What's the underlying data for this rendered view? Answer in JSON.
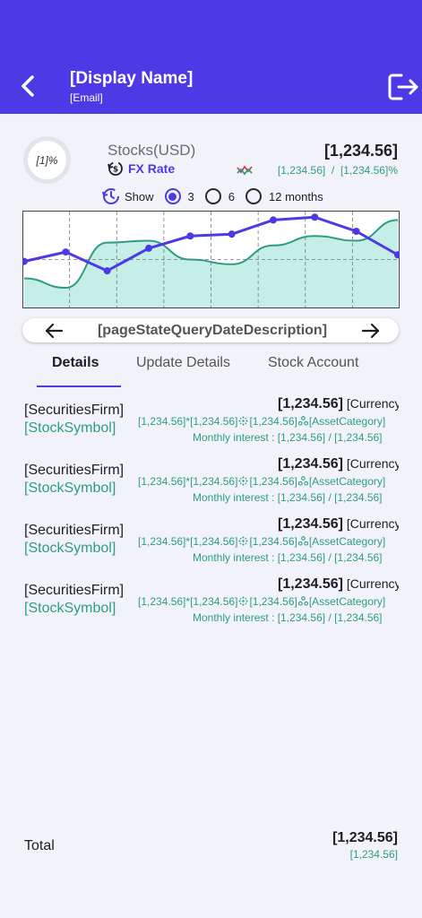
{
  "header": {
    "display_name": "[Display Name]",
    "email": "[Email]",
    "back_icon": "chevron-left-icon",
    "logout_icon": "logout-icon",
    "background_color": "#4b3ae6"
  },
  "summary": {
    "ratio_label": "[1]%",
    "title": "Stocks(USD)",
    "fx_label": "FX Rate",
    "total_value": "[1,234.56]",
    "rate_a": "[1,234.56]",
    "rate_separator": "/",
    "rate_b": "[1,234.56]%"
  },
  "period": {
    "show_label": "Show",
    "options": [
      "3",
      "6",
      "12 months"
    ],
    "selected": "3"
  },
  "chart_data": {
    "type": "line",
    "title": "",
    "xlabel": "",
    "ylabel": "",
    "ylim": [
      0,
      100
    ],
    "x": [
      0,
      1,
      2,
      3,
      4,
      5,
      6,
      7,
      8,
      9
    ],
    "series": [
      {
        "values": [
          48,
          58,
          38,
          62,
          75,
          77,
          92,
          95,
          80,
          55
        ],
        "color": "#4b3ae6"
      },
      {
        "values": [
          30,
          20,
          68,
          70,
          50,
          45,
          65,
          75,
          70,
          92
        ],
        "color": "#2e9c85"
      }
    ],
    "accent_area_color": "#c5efe6"
  },
  "date_nav": {
    "description": "[pageStateQueryDateDescription]"
  },
  "tabs": [
    {
      "label": "Details",
      "active": true
    },
    {
      "label": "Update Details",
      "active": false
    },
    {
      "label": "Stock Account",
      "active": false
    }
  ],
  "holdings": [
    {
      "firm": "[SecuritiesFirm]",
      "symbol": "[StockSymbol]",
      "amount": "[1,234.56]",
      "currency": "[Currency]",
      "qty": "[1,234.56]",
      "times": "*",
      "price": "[1,234.56]",
      "cost": "[1,234.56]",
      "category": "[AssetCategory]",
      "interest_label": "Monthly interest :",
      "interest_a": "[1,234.56]",
      "interest_sep": "/",
      "interest_b": "[1,234.56]"
    },
    {
      "firm": "[SecuritiesFirm]",
      "symbol": "[StockSymbol]",
      "amount": "[1,234.56]",
      "currency": "[Currency]",
      "qty": "[1,234.56]",
      "times": "*",
      "price": "[1,234.56]",
      "cost": "[1,234.56]",
      "category": "[AssetCategory]",
      "interest_label": "Monthly interest :",
      "interest_a": "[1,234.56]",
      "interest_sep": "/",
      "interest_b": "[1,234.56]"
    },
    {
      "firm": "[SecuritiesFirm]",
      "symbol": "[StockSymbol]",
      "amount": "[1,234.56]",
      "currency": "[Currency]",
      "qty": "[1,234.56]",
      "times": "*",
      "price": "[1,234.56]",
      "cost": "[1,234.56]",
      "category": "[AssetCategory]",
      "interest_label": "Monthly interest :",
      "interest_a": "[1,234.56]",
      "interest_sep": "/",
      "interest_b": "[1,234.56]"
    },
    {
      "firm": "[SecuritiesFirm]",
      "symbol": "[StockSymbol]",
      "amount": "[1,234.56]",
      "currency": "[Currency]",
      "qty": "[1,234.56]",
      "times": "*",
      "price": "[1,234.56]",
      "cost": "[1,234.56]",
      "category": "[AssetCategory]",
      "interest_label": "Monthly interest :",
      "interest_a": "[1,234.56]",
      "interest_sep": "/",
      "interest_b": "[1,234.56]"
    }
  ],
  "total": {
    "label": "Total",
    "value": "[1,234.56]",
    "sub_value": "[1,234.56]"
  },
  "colors": {
    "primary": "#4b3ae6",
    "positive": "#2e9c85",
    "background": "#f1f3f9"
  }
}
